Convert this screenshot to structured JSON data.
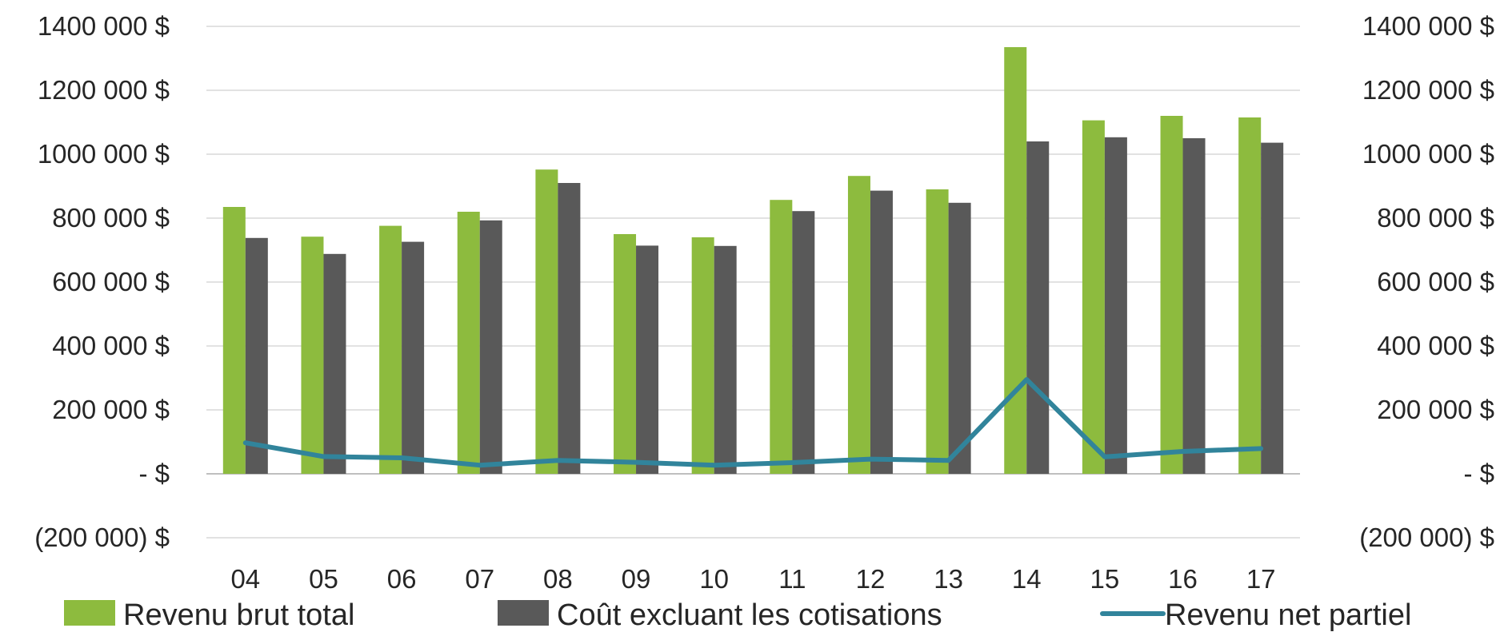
{
  "chart_data": {
    "type": "bar",
    "categories": [
      "04",
      "05",
      "06",
      "07",
      "08",
      "09",
      "10",
      "11",
      "12",
      "13",
      "14",
      "15",
      "16",
      "17"
    ],
    "series": [
      {
        "name": "Revenu brut total",
        "type": "bar",
        "color": "#8dbb3e",
        "values": [
          835000,
          742000,
          776000,
          820000,
          952000,
          750000,
          740000,
          857000,
          932000,
          890000,
          1335000,
          1106000,
          1120000,
          1115000
        ]
      },
      {
        "name": "Coût excluant les cotisations",
        "type": "bar",
        "color": "#595959",
        "values": [
          738000,
          688000,
          726000,
          793000,
          910000,
          714000,
          713000,
          822000,
          886000,
          848000,
          1040000,
          1053000,
          1050000,
          1036000
        ]
      },
      {
        "name": "Revenu net partiel",
        "type": "line",
        "color": "#31849b",
        "values": [
          97000,
          54000,
          50000,
          27000,
          42000,
          36000,
          27000,
          35000,
          46000,
          42000,
          295000,
          53000,
          70000,
          79000
        ]
      }
    ],
    "ylim": [
      -200000,
      1400000
    ],
    "yticks": [
      1400000,
      1200000,
      1000000,
      800000,
      600000,
      400000,
      200000,
      0,
      -200000
    ],
    "ytick_labels": [
      "1400 000  $",
      "1200 000  $",
      "1000 000  $",
      "800 000  $",
      "600 000  $",
      "400 000  $",
      "200 000  $",
      "-    $",
      "(200 000) $"
    ],
    "secondary_axis": true,
    "grid": true,
    "legend_position": "bottom"
  }
}
